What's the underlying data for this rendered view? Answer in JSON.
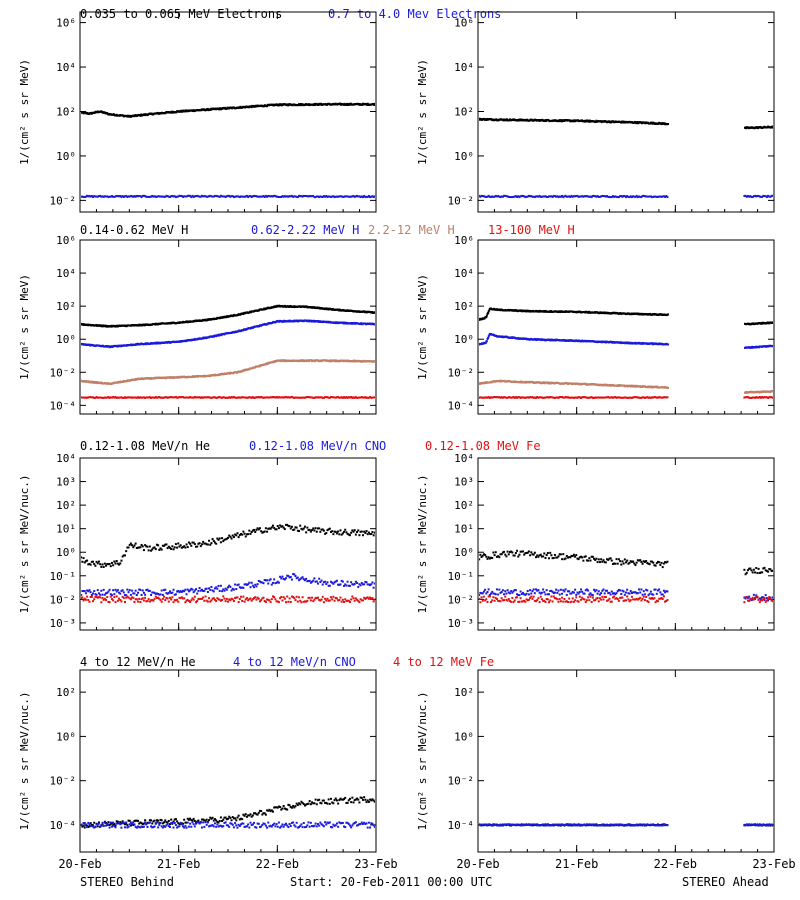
{
  "footer": {
    "left": "STEREO Behind",
    "center": "Start: 20-Feb-2011 00:00 UTC",
    "right": "STEREO Ahead"
  },
  "x_axis": {
    "tick_labels": [
      "20-Feb",
      "21-Feb",
      "22-Feb",
      "23-Feb"
    ],
    "tick_values_days": [
      0,
      1,
      2,
      3
    ],
    "range_days": [
      0,
      3
    ]
  },
  "colors": {
    "black": "#000000",
    "blue": "#1a1adc",
    "tan": "#c08068",
    "red": "#e01010"
  },
  "rows": [
    {
      "legend": [
        {
          "label": "0.035 to 0.065 MeV Electrons",
          "color": "#000000"
        },
        {
          "label": "0.7 to 4.0 Mev Electrons",
          "color": "#1a1adc"
        }
      ],
      "ylabel_left": "1/(cm² s sr MeV)",
      "ylabel_right": "1/(cm² s sr MeV)",
      "ytick_labels": [
        "10⁻²",
        "10⁰",
        "10²",
        "10⁴",
        "10⁶"
      ]
    },
    {
      "legend": [
        {
          "label": "0.14-0.62 MeV H",
          "color": "#000000"
        },
        {
          "label": "0.62-2.22 MeV H",
          "color": "#1a1adc"
        },
        {
          "label": "2.2-12 MeV H",
          "color": "#c08068"
        },
        {
          "label": "13-100 MeV H",
          "color": "#e01010"
        }
      ],
      "ylabel_left": "1/(cm² s sr MeV)",
      "ylabel_right": "1/(cm² s sr MeV)",
      "ytick_labels": [
        "10⁻⁴",
        "10⁻²",
        "10⁰",
        "10²",
        "10⁴",
        "10⁶"
      ]
    },
    {
      "legend": [
        {
          "label": "0.12-1.08 MeV/n He",
          "color": "#000000"
        },
        {
          "label": "0.12-1.08 MeV/n CNO",
          "color": "#1a1adc"
        },
        {
          "label": "0.12-1.08 MeV Fe",
          "color": "#e01010"
        }
      ],
      "ylabel_left": "1/(cm² s sr MeV/nuc.)",
      "ylabel_right": "1/(cm² s sr MeV/nuc.)",
      "ytick_labels": [
        "10⁻³",
        "10⁻²",
        "10⁻¹",
        "10⁰",
        "10¹",
        "10²",
        "10³",
        "10⁴"
      ]
    },
    {
      "legend": [
        {
          "label": "4 to 12 MeV/n He",
          "color": "#000000"
        },
        {
          "label": "4 to 12 MeV/n CNO",
          "color": "#1a1adc"
        },
        {
          "label": "4 to 12 MeV Fe",
          "color": "#e01010"
        }
      ],
      "ylabel_left": "1/(cm² s sr MeV/nuc.)",
      "ylabel_right": "1/(cm² s sr MeV/nuc.)",
      "ytick_labels": [
        "10⁻⁴",
        "10⁻²",
        "10⁰",
        "10²"
      ]
    }
  ],
  "chart_data": [
    {
      "type": "scatter",
      "yscale": "log",
      "ylim": [
        0.003,
        3000000
      ],
      "xlim": [
        0,
        3
      ],
      "yticks": [
        0.01,
        1,
        100,
        10000,
        1000000
      ],
      "series": [
        {
          "name": "0.035 to 0.065 MeV Electrons",
          "color": "#000000",
          "style": "line",
          "x": [
            0,
            0.1,
            0.2,
            0.3,
            0.5,
            0.7,
            1.0,
            1.5,
            2.0,
            2.5,
            3.0
          ],
          "y": [
            90,
            80,
            100,
            75,
            60,
            75,
            100,
            140,
            200,
            210,
            210
          ]
        },
        {
          "name": "0.7 to 4.0 Mev Electrons",
          "color": "#1a1adc",
          "style": "scatter",
          "x": [
            0,
            0.5,
            1.0,
            1.5,
            2.0,
            2.5,
            3.0
          ],
          "y": [
            0.015,
            0.015,
            0.015,
            0.015,
            0.015,
            0.015,
            0.015
          ]
        }
      ]
    },
    {
      "type": "scatter",
      "yscale": "log",
      "ylim": [
        0.003,
        3000000
      ],
      "xlim": [
        0,
        3
      ],
      "yticks": [
        0.01,
        1,
        100,
        10000,
        1000000
      ],
      "gaps": [
        [
          1.93,
          2.7
        ]
      ],
      "series": [
        {
          "name": "0.035 to 0.065 MeV Electrons",
          "color": "#000000",
          "style": "line",
          "x": [
            0,
            0.3,
            0.6,
            1.0,
            1.3,
            1.6,
            1.92,
            2.7,
            3.0
          ],
          "y": [
            45,
            42,
            40,
            38,
            35,
            32,
            28,
            18,
            20
          ]
        },
        {
          "name": "0.7 to 4.0 Mev Electrons",
          "color": "#1a1adc",
          "style": "scatter",
          "x": [
            0,
            1.0,
            1.92,
            2.7,
            3.0
          ],
          "y": [
            0.015,
            0.015,
            0.015,
            0.015,
            0.015
          ]
        }
      ]
    },
    {
      "type": "scatter",
      "yscale": "log",
      "ylim": [
        3e-05,
        1000000
      ],
      "xlim": [
        0,
        3
      ],
      "yticks": [
        0.0001,
        0.01,
        1,
        100,
        10000,
        1000000
      ],
      "series": [
        {
          "name": "0.14-0.62 MeV H",
          "color": "#000000",
          "style": "line",
          "x": [
            0,
            0.3,
            0.6,
            1.0,
            1.3,
            1.6,
            2.0,
            2.3,
            2.6,
            3.0
          ],
          "y": [
            8,
            6,
            7,
            10,
            15,
            30,
            100,
            90,
            60,
            40
          ]
        },
        {
          "name": "0.62-2.22 MeV H",
          "color": "#1a1adc",
          "style": "line",
          "x": [
            0,
            0.3,
            0.6,
            1.0,
            1.3,
            1.6,
            2.0,
            2.3,
            2.6,
            3.0
          ],
          "y": [
            0.5,
            0.35,
            0.5,
            0.7,
            1.3,
            3,
            12,
            13,
            10,
            8
          ]
        },
        {
          "name": "2.2-12 MeV H",
          "color": "#c08068",
          "style": "line",
          "x": [
            0,
            0.3,
            0.6,
            1.0,
            1.3,
            1.6,
            2.0,
            2.5,
            3.0
          ],
          "y": [
            0.003,
            0.002,
            0.004,
            0.005,
            0.006,
            0.01,
            0.05,
            0.05,
            0.045
          ]
        },
        {
          "name": "13-100 MeV H",
          "color": "#e01010",
          "style": "scatter",
          "x": [
            0,
            1.0,
            2.0,
            3.0
          ],
          "y": [
            0.0003,
            0.0003,
            0.0003,
            0.0003
          ]
        }
      ]
    },
    {
      "type": "scatter",
      "yscale": "log",
      "ylim": [
        3e-05,
        1000000
      ],
      "xlim": [
        0,
        3
      ],
      "yticks": [
        0.0001,
        0.01,
        1,
        100,
        10000,
        1000000
      ],
      "gaps": [
        [
          1.93,
          2.7
        ]
      ],
      "series": [
        {
          "name": "0.14-0.62 MeV H",
          "color": "#000000",
          "style": "line",
          "x": [
            0,
            0.08,
            0.12,
            0.2,
            0.5,
            1.0,
            1.5,
            1.92,
            2.7,
            3.0
          ],
          "y": [
            15,
            20,
            70,
            60,
            50,
            45,
            35,
            30,
            8,
            10
          ]
        },
        {
          "name": "0.62-2.22 MeV H",
          "color": "#1a1adc",
          "style": "line",
          "x": [
            0,
            0.08,
            0.12,
            0.2,
            0.5,
            1.0,
            1.5,
            1.92,
            2.7,
            3.0
          ],
          "y": [
            0.5,
            0.6,
            2,
            1.5,
            1.0,
            0.8,
            0.6,
            0.5,
            0.3,
            0.4
          ]
        },
        {
          "name": "2.2-12 MeV H",
          "color": "#c08068",
          "style": "line",
          "x": [
            0,
            0.2,
            0.5,
            1.0,
            1.5,
            1.92,
            2.7,
            3.0
          ],
          "y": [
            0.002,
            0.003,
            0.0025,
            0.002,
            0.0015,
            0.0012,
            0.0006,
            0.0007
          ]
        },
        {
          "name": "13-100 MeV H",
          "color": "#e01010",
          "style": "scatter",
          "x": [
            0,
            1.0,
            1.92,
            2.7,
            3.0
          ],
          "y": [
            0.0003,
            0.0003,
            0.0003,
            0.0003,
            0.0003
          ]
        }
      ]
    },
    {
      "type": "scatter",
      "yscale": "log",
      "ylim": [
        0.0005,
        10000
      ],
      "xlim": [
        0,
        3
      ],
      "yticks": [
        0.001,
        0.01,
        0.1,
        1,
        10,
        100,
        1000,
        10000
      ],
      "series": [
        {
          "name": "0.12-1.08 MeV/n He",
          "color": "#000000",
          "style": "scatter",
          "x": [
            0,
            0.2,
            0.4,
            0.5,
            0.7,
            1.0,
            1.3,
            1.6,
            1.9,
            2.1,
            2.4,
            2.7,
            3.0
          ],
          "y": [
            0.5,
            0.3,
            0.35,
            2,
            1.5,
            1.8,
            2.5,
            5,
            10,
            12,
            8,
            7,
            6
          ]
        },
        {
          "name": "0.12-1.08 MeV/n CNO",
          "color": "#1a1adc",
          "style": "scatter",
          "x": [
            0,
            0.5,
            1.0,
            1.5,
            2.0,
            2.1,
            2.5,
            3.0
          ],
          "y": [
            0.02,
            0.02,
            0.02,
            0.03,
            0.06,
            0.1,
            0.05,
            0.04
          ]
        },
        {
          "name": "0.12-1.08 MeV Fe",
          "color": "#e01010",
          "style": "scatter",
          "x": [
            0,
            1.0,
            2.0,
            3.0
          ],
          "y": [
            0.01,
            0.01,
            0.01,
            0.01
          ]
        }
      ]
    },
    {
      "type": "scatter",
      "yscale": "log",
      "ylim": [
        0.0005,
        10000
      ],
      "xlim": [
        0,
        3
      ],
      "yticks": [
        0.001,
        0.01,
        0.1,
        1,
        10,
        100,
        1000,
        10000
      ],
      "gaps": [
        [
          1.93,
          2.7
        ]
      ],
      "series": [
        {
          "name": "0.12-1.08 MeV/n He",
          "color": "#000000",
          "style": "scatter",
          "x": [
            0,
            0.3,
            0.6,
            1.0,
            1.4,
            1.7,
            1.92,
            2.7,
            3.0
          ],
          "y": [
            0.6,
            0.9,
            0.8,
            0.6,
            0.4,
            0.35,
            0.3,
            0.15,
            0.2
          ]
        },
        {
          "name": "0.12-1.08 MeV/n CNO",
          "color": "#1a1adc",
          "style": "scatter",
          "x": [
            0,
            1.0,
            1.92,
            2.7,
            3.0
          ],
          "y": [
            0.02,
            0.02,
            0.02,
            0.012,
            0.012
          ]
        },
        {
          "name": "0.12-1.08 MeV Fe",
          "color": "#e01010",
          "style": "scatter",
          "x": [
            0,
            1.0,
            1.92,
            2.7,
            3.0
          ],
          "y": [
            0.01,
            0.01,
            0.01,
            0.01,
            0.01
          ]
        }
      ]
    },
    {
      "type": "scatter",
      "yscale": "log",
      "ylim": [
        6e-06,
        1000
      ],
      "xlim": [
        0,
        3
      ],
      "yticks": [
        0.0001,
        0.01,
        1,
        100
      ],
      "series": [
        {
          "name": "4 to 12 MeV/n He",
          "color": "#000000",
          "style": "scatter",
          "x": [
            0,
            0.5,
            1.0,
            1.3,
            1.6,
            2.0,
            2.3,
            2.6,
            3.0
          ],
          "y": [
            0.0001,
            0.00012,
            0.00014,
            0.00016,
            0.0002,
            0.0005,
            0.001,
            0.0012,
            0.0015
          ]
        },
        {
          "name": "4 to 12 MeV/n CNO",
          "color": "#1a1adc",
          "style": "scatter",
          "x": [
            0,
            1.0,
            2.0,
            3.0
          ],
          "y": [
            0.0001,
            0.0001,
            0.0001,
            0.0001
          ]
        },
        {
          "name": "4 to 12 MeV Fe",
          "color": "#e01010",
          "style": "scatter",
          "x": [],
          "y": []
        }
      ]
    },
    {
      "type": "scatter",
      "yscale": "log",
      "ylim": [
        6e-06,
        1000
      ],
      "xlim": [
        0,
        3
      ],
      "yticks": [
        0.0001,
        0.01,
        1,
        100
      ],
      "gaps": [
        [
          1.93,
          2.7
        ]
      ],
      "series": [
        {
          "name": "4 to 12 MeV/n He",
          "color": "#000000",
          "style": "scatter",
          "x": [
            0,
            1.92,
            2.7,
            3.0
          ],
          "y": [
            0.0001,
            0.0001,
            0.0001,
            0.0001
          ]
        },
        {
          "name": "4 to 12 MeV/n CNO",
          "color": "#1a1adc",
          "style": "scatter",
          "x": [
            0,
            1.92,
            2.7,
            3.0
          ],
          "y": [
            0.0001,
            0.0001,
            0.0001,
            0.0001
          ]
        },
        {
          "name": "4 to 12 MeV Fe",
          "color": "#e01010",
          "style": "scatter",
          "x": [],
          "y": []
        }
      ]
    }
  ]
}
